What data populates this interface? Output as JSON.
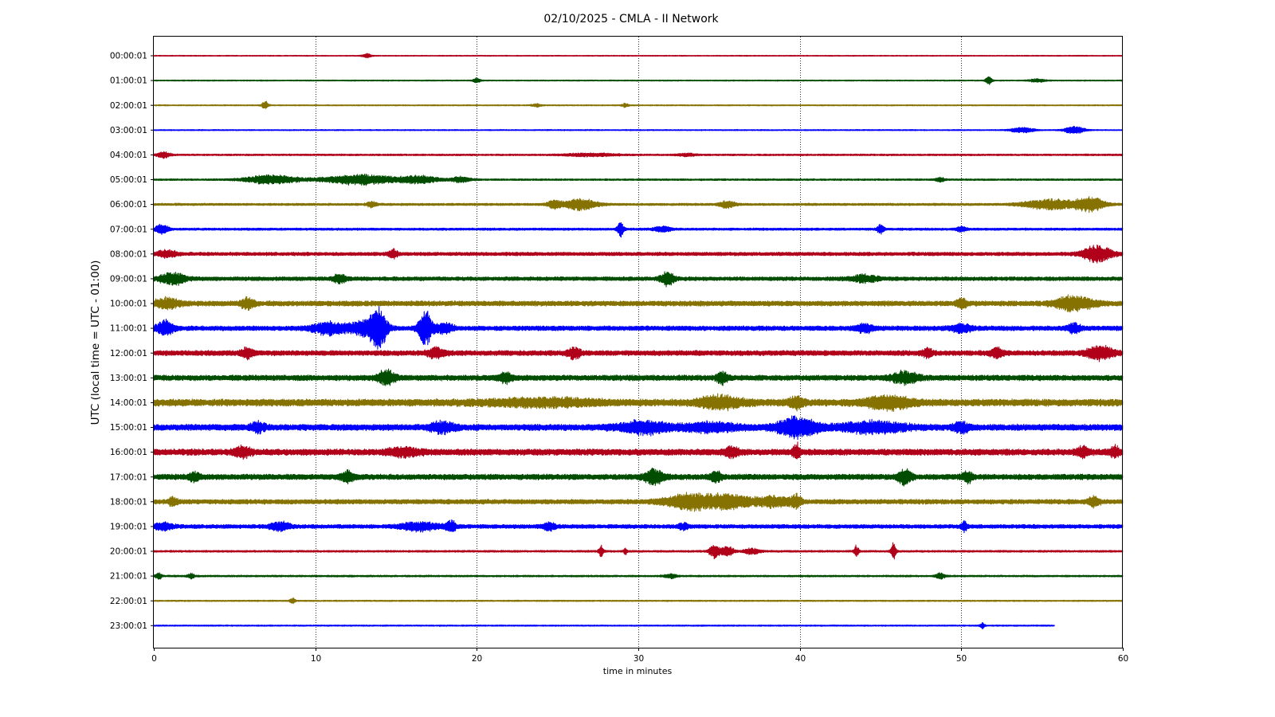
{
  "chart_data": {
    "type": "line",
    "title": "02/10/2025 - CMLA - II Network",
    "xlabel": "time in minutes",
    "ylabel": "UTC (local time = UTC - 01:00)",
    "xlim": [
      0,
      60
    ],
    "xticks": [
      0,
      10,
      20,
      30,
      40,
      50,
      60
    ],
    "grid": "vertical dotted lines at 10, 20, 30, 40, 50",
    "palette": [
      "#b0001a",
      "#004d00",
      "#857200",
      "#0000ff"
    ],
    "rows": [
      {
        "label": "00:00:01",
        "color": "#b0001a",
        "noise": 0.25,
        "bursts": [
          [
            13.2,
            0.3,
            0.9
          ]
        ]
      },
      {
        "label": "01:00:01",
        "color": "#004d00",
        "noise": 0.3,
        "bursts": [
          [
            20.0,
            0.2,
            1.3
          ],
          [
            51.7,
            0.2,
            1.9
          ],
          [
            54.7,
            0.5,
            0.8
          ]
        ]
      },
      {
        "label": "02:00:01",
        "color": "#857200",
        "noise": 0.3,
        "bursts": [
          [
            6.9,
            0.2,
            1.9
          ],
          [
            23.7,
            0.3,
            0.8
          ],
          [
            29.2,
            0.2,
            1.0
          ]
        ]
      },
      {
        "label": "03:00:01",
        "color": "#0000ff",
        "noise": 0.3,
        "bursts": [
          [
            53.8,
            0.7,
            1.4
          ],
          [
            57.0,
            0.6,
            2.0
          ]
        ]
      },
      {
        "label": "04:00:01",
        "color": "#b0001a",
        "noise": 0.45,
        "bursts": [
          [
            0.6,
            0.4,
            1.5
          ],
          [
            27.0,
            1.6,
            0.7
          ],
          [
            33.0,
            0.6,
            0.6
          ]
        ]
      },
      {
        "label": "05:00:01",
        "color": "#004d00",
        "noise": 0.45,
        "bursts": [
          [
            7.3,
            1.6,
            2.2
          ],
          [
            12.8,
            2.2,
            2.5
          ],
          [
            16.5,
            1.2,
            1.7
          ],
          [
            19.0,
            0.6,
            1.3
          ],
          [
            48.7,
            0.3,
            1.0
          ]
        ]
      },
      {
        "label": "06:00:01",
        "color": "#857200",
        "noise": 0.6,
        "bursts": [
          [
            13.5,
            0.3,
            1.3
          ],
          [
            24.8,
            0.4,
            2.0
          ],
          [
            26.4,
            1.0,
            2.6
          ],
          [
            35.5,
            0.5,
            1.6
          ],
          [
            55.5,
            1.6,
            2.4
          ],
          [
            58.0,
            0.9,
            3.5
          ]
        ]
      },
      {
        "label": "07:00:01",
        "color": "#0000ff",
        "noise": 0.6,
        "bursts": [
          [
            0.5,
            0.4,
            2.3
          ],
          [
            28.9,
            0.2,
            3.5
          ],
          [
            31.5,
            0.5,
            1.5
          ],
          [
            45.0,
            0.2,
            2.2
          ],
          [
            50.0,
            0.3,
            1.1
          ]
        ]
      },
      {
        "label": "08:00:01",
        "color": "#b0001a",
        "noise": 0.9,
        "bursts": [
          [
            0.8,
            0.6,
            1.6
          ],
          [
            14.8,
            0.3,
            2.0
          ],
          [
            58.4,
            0.9,
            3.8
          ]
        ]
      },
      {
        "label": "09:00:01",
        "color": "#004d00",
        "noise": 1.0,
        "bursts": [
          [
            1.2,
            0.8,
            2.8
          ],
          [
            11.5,
            0.4,
            2.0
          ],
          [
            31.8,
            0.4,
            3.4
          ],
          [
            44.0,
            0.8,
            1.6
          ]
        ]
      },
      {
        "label": "10:00:01",
        "color": "#857200",
        "noise": 1.3,
        "bursts": [
          [
            0.8,
            0.8,
            2.2
          ],
          [
            5.8,
            0.4,
            2.6
          ],
          [
            50.0,
            0.3,
            2.6
          ],
          [
            57.0,
            1.2,
            3.3
          ]
        ]
      },
      {
        "label": "11:00:01",
        "color": "#0000ff",
        "noise": 1.2,
        "bursts": [
          [
            0.7,
            0.5,
            3.8
          ],
          [
            10.8,
            1.0,
            2.8
          ],
          [
            13.0,
            0.9,
            3.5
          ],
          [
            13.9,
            0.5,
            10.0
          ],
          [
            16.8,
            0.4,
            9.0
          ],
          [
            18.0,
            0.5,
            2.5
          ],
          [
            44.0,
            0.5,
            2.0
          ],
          [
            50.0,
            0.7,
            1.6
          ],
          [
            57.0,
            0.4,
            2.0
          ]
        ]
      },
      {
        "label": "12:00:01",
        "color": "#b0001a",
        "noise": 1.3,
        "bursts": [
          [
            5.8,
            0.4,
            2.2
          ],
          [
            17.5,
            0.5,
            2.5
          ],
          [
            26.0,
            0.4,
            2.5
          ],
          [
            47.9,
            0.3,
            2.2
          ],
          [
            52.2,
            0.4,
            2.2
          ],
          [
            58.6,
            0.8,
            3.2
          ]
        ]
      },
      {
        "label": "13:00:01",
        "color": "#004d00",
        "noise": 1.4,
        "bursts": [
          [
            14.4,
            0.5,
            3.5
          ],
          [
            21.8,
            0.4,
            2.0
          ],
          [
            35.2,
            0.3,
            2.8
          ],
          [
            46.5,
            0.8,
            2.5
          ]
        ]
      },
      {
        "label": "14:00:01",
        "color": "#857200",
        "noise": 1.8,
        "bursts": [
          [
            24.0,
            3.5,
            1.4
          ],
          [
            35.1,
            1.3,
            2.8
          ],
          [
            39.8,
            0.4,
            2.8
          ],
          [
            45.5,
            1.4,
            2.6
          ]
        ]
      },
      {
        "label": "15:00:01",
        "color": "#0000ff",
        "noise": 1.6,
        "bursts": [
          [
            6.4,
            0.4,
            2.2
          ],
          [
            17.9,
            0.7,
            2.4
          ],
          [
            30.3,
            1.5,
            2.8
          ],
          [
            34.5,
            1.8,
            1.8
          ],
          [
            39.8,
            1.2,
            4.8
          ],
          [
            44.5,
            2.0,
            2.4
          ],
          [
            50.0,
            0.5,
            2.1
          ]
        ]
      },
      {
        "label": "16:00:01",
        "color": "#b0001a",
        "noise": 1.6,
        "bursts": [
          [
            5.5,
            0.5,
            2.4
          ],
          [
            15.5,
            1.0,
            1.8
          ],
          [
            35.8,
            0.4,
            2.4
          ],
          [
            39.8,
            0.2,
            3.8
          ],
          [
            57.5,
            0.4,
            2.2
          ],
          [
            59.5,
            0.3,
            2.6
          ]
        ]
      },
      {
        "label": "17:00:01",
        "color": "#004d00",
        "noise": 1.4,
        "bursts": [
          [
            2.5,
            0.3,
            2.2
          ],
          [
            12.0,
            0.4,
            2.2
          ],
          [
            31.0,
            0.6,
            3.4
          ],
          [
            34.8,
            0.3,
            2.6
          ],
          [
            46.5,
            0.4,
            3.4
          ],
          [
            50.4,
            0.3,
            2.4
          ]
        ]
      },
      {
        "label": "18:00:01",
        "color": "#857200",
        "noise": 1.2,
        "bursts": [
          [
            1.2,
            0.3,
            1.8
          ],
          [
            33.0,
            1.4,
            3.4
          ],
          [
            35.5,
            1.6,
            3.0
          ],
          [
            38.5,
            1.0,
            2.2
          ],
          [
            39.8,
            0.3,
            3.0
          ],
          [
            58.2,
            0.4,
            2.0
          ]
        ]
      },
      {
        "label": "19:00:01",
        "color": "#0000ff",
        "noise": 1.0,
        "bursts": [
          [
            0.6,
            0.6,
            1.6
          ],
          [
            7.8,
            0.6,
            2.0
          ],
          [
            16.5,
            1.2,
            2.0
          ],
          [
            18.4,
            0.3,
            2.6
          ],
          [
            24.5,
            0.4,
            1.6
          ],
          [
            32.8,
            0.3,
            1.8
          ],
          [
            50.2,
            0.2,
            2.2
          ]
        ]
      },
      {
        "label": "20:00:01",
        "color": "#b0001a",
        "noise": 0.5,
        "bursts": [
          [
            27.7,
            0.15,
            2.8
          ],
          [
            29.2,
            0.1,
            1.6
          ],
          [
            34.7,
            0.3,
            3.4
          ],
          [
            35.5,
            0.4,
            2.6
          ],
          [
            37.0,
            0.5,
            1.4
          ],
          [
            43.5,
            0.15,
            2.6
          ],
          [
            45.8,
            0.15,
            4.2
          ]
        ]
      },
      {
        "label": "21:00:01",
        "color": "#004d00",
        "noise": 0.45,
        "bursts": [
          [
            0.3,
            0.2,
            1.4
          ],
          [
            2.3,
            0.2,
            1.2
          ],
          [
            32.0,
            0.4,
            1.0
          ],
          [
            48.7,
            0.3,
            1.3
          ]
        ]
      },
      {
        "label": "22:00:01",
        "color": "#857200",
        "noise": 0.35,
        "bursts": [
          [
            8.6,
            0.15,
            1.5
          ]
        ]
      },
      {
        "label": "23:00:01",
        "color": "#0000ff",
        "noise": 0.35,
        "bursts": [
          [
            51.3,
            0.15,
            1.5
          ]
        ],
        "end": 55.8
      }
    ]
  }
}
